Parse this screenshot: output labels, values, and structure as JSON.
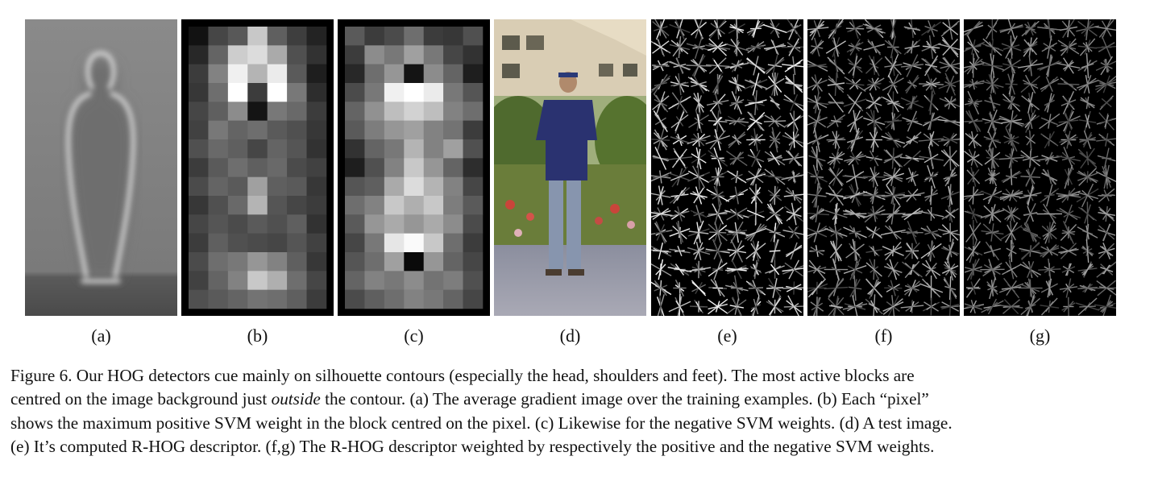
{
  "panels": [
    {
      "id": "a",
      "label": "(a)",
      "kind": "average-gradient-image"
    },
    {
      "id": "b",
      "label": "(b)",
      "kind": "positive-weight-grid"
    },
    {
      "id": "c",
      "label": "(c)",
      "kind": "negative-weight-grid"
    },
    {
      "id": "d",
      "label": "(d)",
      "kind": "test-image-photo"
    },
    {
      "id": "e",
      "label": "(e)",
      "kind": "rhog-descriptor"
    },
    {
      "id": "f",
      "label": "(f)",
      "kind": "rhog-positive-weighted"
    },
    {
      "id": "g",
      "label": "(g)",
      "kind": "rhog-negative-weighted"
    }
  ],
  "caption": {
    "line1": "Figure 6. Our HOG detectors cue mainly on silhouette contours (especially the head, shoulders and feet).  The most active blocks are",
    "line2_pre": "centred on the image background just ",
    "line2_em": "outside",
    "line2_post": " the contour.  (a) The average gradient image over the training examples.  (b) Each “pixel”",
    "line3": "shows the maximum positive SVM weight in the block centred on the pixel. (c) Likewise for the negative SVM weights. (d) A test image.",
    "line4": "(e) It’s computed R-HOG descriptor. (f,g) The R-HOG descriptor weighted by respectively the positive and the negative SVM weights."
  },
  "grid_b": [
    [
      18,
      70,
      88,
      200,
      95,
      62,
      35
    ],
    [
      40,
      100,
      205,
      220,
      170,
      80,
      50
    ],
    [
      60,
      130,
      240,
      180,
      235,
      90,
      30
    ],
    [
      55,
      110,
      255,
      60,
      255,
      120,
      45
    ],
    [
      70,
      95,
      140,
      20,
      120,
      105,
      60
    ],
    [
      65,
      120,
      100,
      110,
      90,
      80,
      55
    ],
    [
      80,
      105,
      95,
      70,
      100,
      85,
      50
    ],
    [
      60,
      90,
      110,
      95,
      105,
      75,
      65
    ],
    [
      75,
      100,
      90,
      160,
      95,
      90,
      55
    ],
    [
      55,
      80,
      105,
      180,
      85,
      70,
      60
    ],
    [
      70,
      85,
      75,
      90,
      80,
      95,
      50
    ],
    [
      60,
      95,
      80,
      75,
      70,
      85,
      65
    ],
    [
      75,
      110,
      120,
      150,
      130,
      95,
      55
    ],
    [
      65,
      100,
      130,
      200,
      175,
      110,
      70
    ],
    [
      80,
      90,
      100,
      115,
      110,
      95,
      60
    ]
  ],
  "grid_c": [
    [
      90,
      60,
      75,
      110,
      60,
      55,
      80
    ],
    [
      60,
      140,
      120,
      160,
      120,
      70,
      50
    ],
    [
      40,
      110,
      150,
      20,
      140,
      100,
      30
    ],
    [
      75,
      120,
      240,
      255,
      235,
      120,
      85
    ],
    [
      100,
      145,
      190,
      210,
      190,
      130,
      110
    ],
    [
      90,
      125,
      150,
      160,
      130,
      115,
      60
    ],
    [
      50,
      100,
      120,
      180,
      130,
      160,
      80
    ],
    [
      30,
      80,
      130,
      200,
      150,
      100,
      45
    ],
    [
      85,
      95,
      170,
      220,
      180,
      130,
      70
    ],
    [
      110,
      130,
      200,
      175,
      200,
      125,
      90
    ],
    [
      90,
      150,
      170,
      150,
      170,
      140,
      75
    ],
    [
      70,
      120,
      230,
      250,
      200,
      110,
      60
    ],
    [
      85,
      110,
      160,
      10,
      150,
      100,
      70
    ],
    [
      100,
      130,
      120,
      140,
      115,
      125,
      80
    ],
    [
      75,
      95,
      110,
      130,
      120,
      100,
      70
    ]
  ]
}
